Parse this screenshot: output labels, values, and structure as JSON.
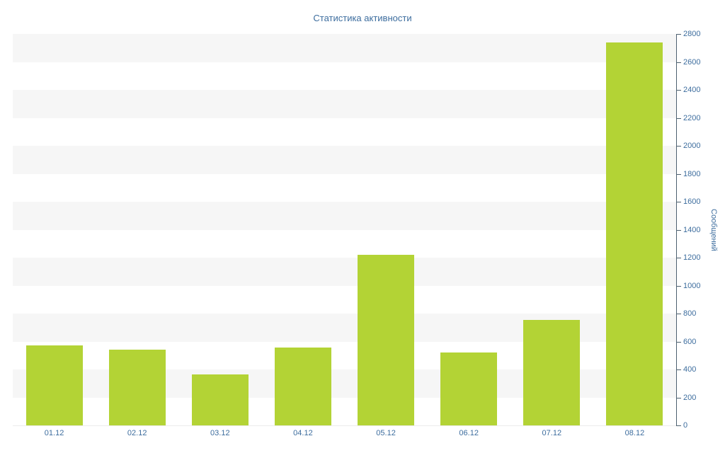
{
  "chart_data": {
    "type": "bar",
    "title": "Статистика активности",
    "categories": [
      "01.12",
      "02.12",
      "03.12",
      "04.12",
      "05.12",
      "06.12",
      "07.12",
      "08.12"
    ],
    "values": [
      570,
      540,
      365,
      555,
      1220,
      520,
      755,
      2740
    ],
    "xlabel": "",
    "ylabel": "Сообщений",
    "ylim": [
      0,
      2800
    ],
    "ytick_step": 200,
    "yticks": [
      0,
      200,
      400,
      600,
      800,
      1000,
      1200,
      1400,
      1600,
      1800,
      2000,
      2200,
      2400,
      2600,
      2800
    ],
    "legend_position": "none",
    "grid": "alternating-horizontal-bands",
    "colors": {
      "bar": "#b3d335",
      "band": "#f6f6f6",
      "axis_text": "#3d6d9e",
      "axis_line": "#4d6070",
      "title": "#3d6d9e",
      "background": "#ffffff"
    }
  }
}
